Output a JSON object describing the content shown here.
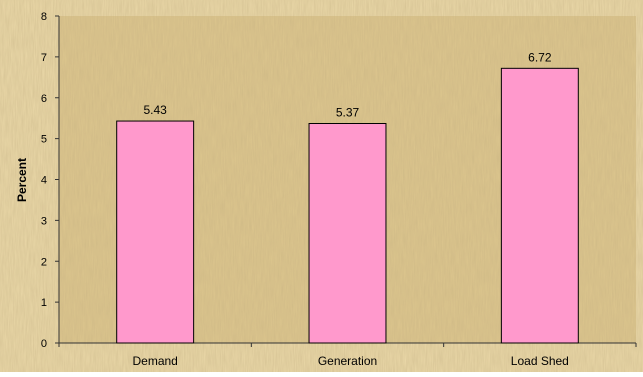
{
  "chart_data": {
    "type": "bar",
    "title": "",
    "xlabel": "",
    "ylabel": "Percent",
    "categories": [
      "Demand",
      "Generation",
      "Load Shed"
    ],
    "values": [
      5.43,
      5.37,
      6.72
    ],
    "data_labels": [
      "5.43",
      "5.37",
      "6.72"
    ],
    "ylim": [
      0,
      8
    ],
    "yticks": [
      0,
      1,
      2,
      3,
      4,
      5,
      6,
      7,
      8
    ],
    "grid": false,
    "legend": "none",
    "colors": {
      "bar_fill": "#ff99cc",
      "bar_stroke": "#000000",
      "plot_background": "#ddc68e",
      "page_background": "#ead8a8"
    }
  }
}
